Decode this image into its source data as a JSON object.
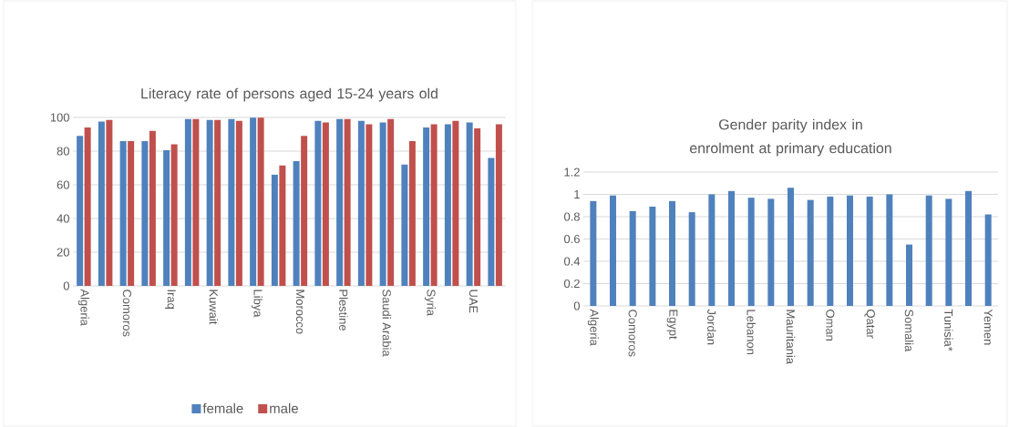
{
  "chart_data": [
    {
      "type": "bar",
      "title": "Literacy rate of persons aged 15-24 years old",
      "categories": [
        "Algeria",
        null,
        "Comoros",
        null,
        "Iraq",
        null,
        "Kuwait",
        null,
        "Libya",
        null,
        "Morocco",
        null,
        "Plestine",
        null,
        "Saudi Arabia",
        null,
        "Syria",
        null,
        "UAE",
        null
      ],
      "series": [
        {
          "name": "female",
          "color": "#4f81bd",
          "values": [
            89,
            97.5,
            86,
            86,
            80.5,
            99,
            98.5,
            99,
            99.8,
            66,
            74,
            98,
            99,
            98,
            97,
            72,
            94,
            96,
            97,
            76
          ]
        },
        {
          "name": "male",
          "color": "#c0504d",
          "values": [
            94,
            98.5,
            86,
            92,
            84,
            99,
            98.5,
            98,
            99.8,
            71.5,
            89,
            97,
            99,
            96,
            99,
            86,
            96,
            98,
            93.5,
            96
          ]
        }
      ],
      "ylim": [
        0,
        100
      ],
      "yticks": [
        0,
        20,
        40,
        60,
        80,
        100
      ],
      "grid": "y",
      "legend": "bottom"
    },
    {
      "type": "bar",
      "title": "Gender parity index in enrolment at primary education",
      "categories": [
        "Algeria",
        null,
        "Comoros",
        null,
        "Egypt",
        null,
        "Jordan",
        null,
        "Lebanon",
        null,
        "Mauritania",
        null,
        "Oman",
        null,
        "Qatar",
        null,
        "Somalia",
        null,
        "Tunisia*",
        null,
        "Yemen"
      ],
      "series": [
        {
          "color": "#4f81bd",
          "values": [
            0.94,
            0.99,
            0.85,
            0.89,
            0.94,
            0.84,
            1.0,
            1.03,
            0.97,
            0.96,
            1.06,
            0.95,
            0.98,
            0.99,
            0.98,
            1.0,
            0.55,
            0.99,
            0.96,
            1.03,
            0.82
          ]
        }
      ],
      "ylim": [
        0,
        1.2
      ],
      "yticks": [
        0,
        0.2,
        0.4,
        0.6,
        0.8,
        1,
        1.2
      ],
      "grid": "y"
    }
  ]
}
